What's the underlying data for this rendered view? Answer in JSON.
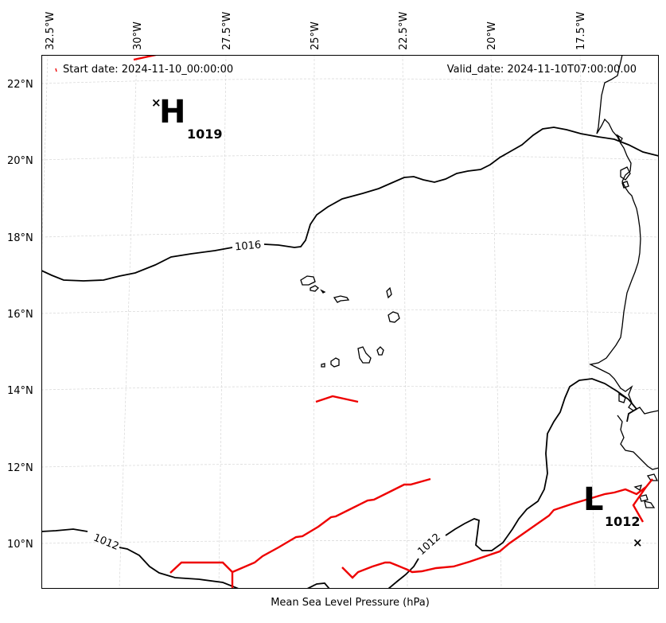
{
  "map": {
    "start_date": "Start date: 2024-11-10_00:00:00",
    "valid_date": "Valid_date: 2024-11-10T07:00:00.00",
    "caption": "Mean Sea Level Pressure (hPa)",
    "lon_labels": [
      "32.5°W",
      "30°W",
      "27.5°W",
      "25°W",
      "22.5°W",
      "20°W",
      "17.5°W"
    ],
    "lat_labels": [
      "22°N",
      "20°N",
      "18°N",
      "16°N",
      "14°N",
      "12°N",
      "10°N"
    ],
    "contour_labels": [
      "1016",
      "1012",
      "1012"
    ],
    "high": {
      "letter": "H",
      "value": "1019",
      "marker": "×"
    },
    "low": {
      "letter": "L",
      "value": "1012",
      "marker": "×"
    },
    "colors": {
      "isobar": "#000000",
      "front": "#ee0000",
      "grid": "#d0d0d0",
      "coast": "#000000"
    }
  }
}
